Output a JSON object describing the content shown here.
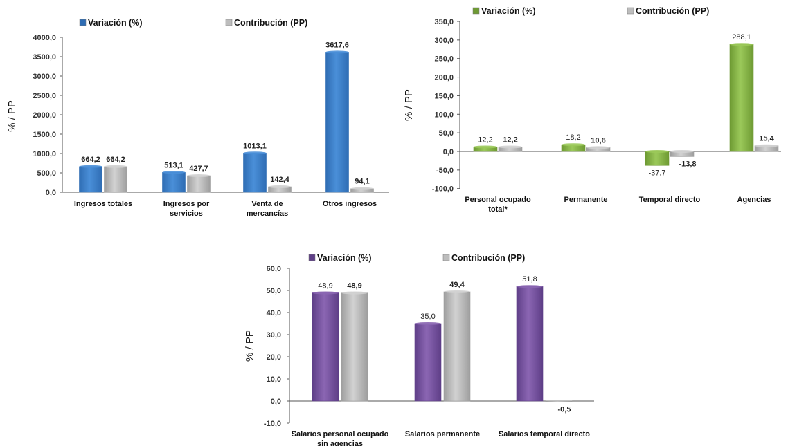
{
  "chart_data": [
    {
      "type": "bar",
      "categories": [
        [
          "Ingresos totales"
        ],
        [
          "Ingresos por",
          "servicios"
        ],
        [
          "Venta de",
          "mercancías"
        ],
        [
          "Otros ingresos"
        ]
      ],
      "series": [
        {
          "name": "Variación (%)",
          "values": [
            664.2,
            513.1,
            1013.1,
            3617.6
          ],
          "labels": [
            "664,2",
            "513,1",
            "1013,1",
            "3617,6"
          ],
          "color": "#4a8fd8",
          "dark": "#2f6db4",
          "marker": "#2f6db4"
        },
        {
          "name": "Contribución (PP)",
          "values": [
            664.2,
            427.7,
            142.4,
            94.1
          ],
          "labels": [
            "664,2",
            "427,7",
            "142,4",
            "94,1"
          ],
          "color": "#d2d2d2",
          "dark": "#9e9e9e",
          "marker": "#bdbdbd"
        }
      ],
      "ylabel": "% / PP",
      "ylim": [
        0,
        4000
      ],
      "yticks": [
        0,
        500,
        1000,
        1500,
        2000,
        2500,
        3000,
        3500,
        4000
      ],
      "ytick_labels": [
        "0,0",
        "500,0",
        "1000,0",
        "1500,0",
        "2000,0",
        "2500,0",
        "3000,0",
        "3500,0",
        "4000,0"
      ],
      "legend": "top",
      "grid": false,
      "first_label_bold": true
    },
    {
      "type": "bar",
      "categories": [
        [
          "Personal ocupado",
          "total*"
        ],
        [
          "Permanente"
        ],
        [
          "Temporal directo"
        ],
        [
          "Agencias"
        ]
      ],
      "series": [
        {
          "name": "Variación (%)",
          "values": [
            12.2,
            18.2,
            -37.7,
            288.1
          ],
          "labels": [
            "12,2",
            "18,2",
            "-37,7",
            "288,1"
          ],
          "color": "#9bc95a",
          "dark": "#6e9a33",
          "marker": "#6e9a33"
        },
        {
          "name": "Contribución (PP)",
          "values": [
            12.2,
            10.6,
            -13.8,
            15.4
          ],
          "labels": [
            "12,2",
            "10,6",
            "-13,8",
            "15,4"
          ],
          "color": "#d2d2d2",
          "dark": "#9e9e9e",
          "marker": "#bdbdbd"
        }
      ],
      "ylabel": "% / PP",
      "ylim": [
        -100,
        350
      ],
      "yticks": [
        -100,
        -50,
        0,
        50,
        100,
        150,
        200,
        250,
        300,
        350
      ],
      "ytick_labels": [
        "-100,0",
        "-50,0",
        "0,0",
        "50,0",
        "100,0",
        "150,0",
        "200,0",
        "250,0",
        "300,0",
        "350,0"
      ],
      "legend": "top",
      "grid": false,
      "first_label_bold": false
    },
    {
      "type": "bar",
      "categories": [
        [
          "Salarios personal ocupado",
          "sin agencias"
        ],
        [
          "Salarios permanente"
        ],
        [
          "Salarios temporal directo"
        ]
      ],
      "series": [
        {
          "name": "Variación (%)",
          "values": [
            48.9,
            35.0,
            51.8
          ],
          "labels": [
            "48,9",
            "35,0",
            "51,8"
          ],
          "color": "#8b66b3",
          "dark": "#5e3e87",
          "marker": "#5e3e87"
        },
        {
          "name": "Contribución (PP)",
          "values": [
            48.9,
            49.4,
            -0.5
          ],
          "labels": [
            "48,9",
            "49,4",
            "-0,5"
          ],
          "color": "#d2d2d2",
          "dark": "#9e9e9e",
          "marker": "#bdbdbd"
        }
      ],
      "ylabel": "% / PP",
      "ylim": [
        -10,
        60
      ],
      "yticks": [
        -10,
        0,
        10,
        20,
        30,
        40,
        50,
        60
      ],
      "ytick_labels": [
        "-10,0",
        "0,0",
        "10,0",
        "20,0",
        "30,0",
        "40,0",
        "50,0",
        "60,0"
      ],
      "legend": "top",
      "grid": false,
      "first_label_bold": false
    }
  ]
}
